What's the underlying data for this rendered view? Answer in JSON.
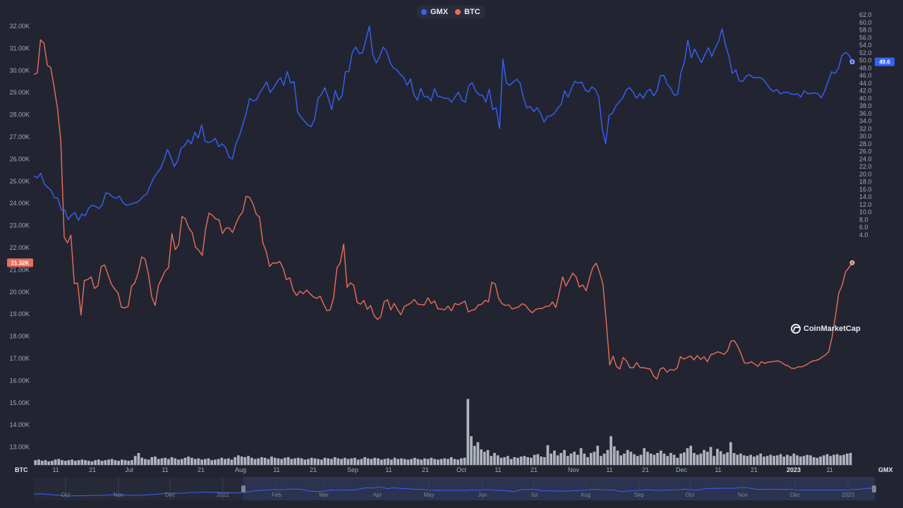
{
  "legend": {
    "items": [
      {
        "label": "GMX",
        "color": "#3861fb"
      },
      {
        "label": "BTC",
        "color": "#ea6e5a"
      }
    ]
  },
  "watermark": {
    "text": "CoinMarketCap",
    "icon": "coinmarketcap-logo-icon"
  },
  "colors": {
    "gmx": "#3861fb",
    "btc": "#ea6e5a",
    "volume": "#c8ccd6",
    "grid": "#2a2e3c",
    "background": "#222531"
  },
  "chart_data": {
    "type": "line",
    "left_axis": {
      "title": "BTC",
      "ticks": [
        "32.00K",
        "31.00K",
        "30.00K",
        "29.00K",
        "28.00K",
        "27.00K",
        "26.00K",
        "25.00K",
        "24.00K",
        "23.00K",
        "22.00K",
        "21.00K",
        "20.00K",
        "19.00K",
        "18.00K",
        "17.00K",
        "16.00K",
        "15.00K",
        "14.00K",
        "13.00K"
      ],
      "range": [
        12600,
        32000
      ]
    },
    "right_axis": {
      "title": "GMX",
      "ticks": [
        "62.0",
        "60.0",
        "58.0",
        "56.0",
        "54.0",
        "52.0",
        "50.0",
        "48.0",
        "46.0",
        "44.0",
        "42.0",
        "40.0",
        "38.0",
        "36.0",
        "34.0",
        "32.0",
        "30.0",
        "28.0",
        "26.0",
        "24.0",
        "22.0",
        "20.0",
        "18.0",
        "16.0",
        "14.0",
        "12.0",
        "10.0",
        "8.0",
        "6.0",
        "4.0"
      ],
      "range": [
        3,
        62
      ]
    },
    "x_axis": {
      "ticks": [
        {
          "label": "11",
          "bold": false
        },
        {
          "label": "21",
          "bold": false
        },
        {
          "label": "Jul",
          "bold": false
        },
        {
          "label": "11",
          "bold": false
        },
        {
          "label": "21",
          "bold": false
        },
        {
          "label": "Aug",
          "bold": false
        },
        {
          "label": "11",
          "bold": false
        },
        {
          "label": "21",
          "bold": false
        },
        {
          "label": "Sep",
          "bold": false
        },
        {
          "label": "11",
          "bold": false
        },
        {
          "label": "21",
          "bold": false
        },
        {
          "label": "Oct",
          "bold": false
        },
        {
          "label": "11",
          "bold": false
        },
        {
          "label": "21",
          "bold": false
        },
        {
          "label": "Nov",
          "bold": false
        },
        {
          "label": "11",
          "bold": false
        },
        {
          "label": "21",
          "bold": false
        },
        {
          "label": "Dec",
          "bold": false
        },
        {
          "label": "11",
          "bold": false
        },
        {
          "label": "21",
          "bold": false
        },
        {
          "label": "2023",
          "bold": true
        },
        {
          "label": "11",
          "bold": false
        }
      ]
    },
    "navigator": {
      "ticks": [
        "Oct",
        "Nov",
        "Dec",
        "2022",
        "Feb",
        "Mar",
        "Apr",
        "May",
        "Jun",
        "Jul",
        "Aug",
        "Sep",
        "Oct",
        "Nov",
        "Dec",
        "2023"
      ]
    },
    "last_values": {
      "BTC": "21.32K",
      "GMX": "49.6"
    },
    "series": [
      {
        "name": "GMX",
        "axis": "right",
        "values": [
          19.5,
          19.0,
          20.2,
          17.5,
          16.5,
          15.8,
          13.8,
          13.6,
          10.5,
          10.6,
          8.0,
          9.2,
          9.8,
          7.8,
          9.5,
          9.0,
          11.0,
          11.8,
          11.5,
          10.9,
          12.0,
          15.0,
          14.8,
          14.0,
          13.6,
          14.2,
          12.5,
          11.8,
          12.0,
          12.3,
          12.5,
          13.2,
          14.2,
          14.8,
          17.0,
          19.0,
          20.3,
          21.5,
          23.7,
          26.5,
          24.5,
          22.0,
          23.5,
          26.8,
          27.5,
          29.0,
          28.0,
          31.0,
          29.5,
          33.0,
          28.7,
          28.3,
          28.7,
          29.4,
          27.2,
          28.0,
          27.0,
          24.5,
          24.0,
          28.0,
          30.0,
          33.0,
          36.0,
          40.0,
          39.3,
          39.6,
          41.5,
          42.8,
          44.3,
          41.5,
          42.7,
          44.3,
          45.4,
          43.4,
          47.0,
          44.0,
          44.4,
          36.5,
          35.0,
          34.0,
          33.0,
          32.5,
          34.5,
          40.0,
          41.0,
          42.8,
          40.0,
          37.0,
          42.0,
          39.5,
          40.6,
          47.0,
          47.0,
          52.1,
          53.5,
          51.8,
          52.0,
          55.5,
          59.0,
          51.5,
          49.3,
          51.0,
          53.5,
          52.5,
          49.5,
          48.0,
          47.5,
          46.3,
          45.5,
          43.4,
          45.1,
          41.0,
          39.5,
          42.6,
          40.4,
          40.5,
          39.3,
          42.5,
          40.5,
          40.3,
          40.0,
          40.0,
          39.0,
          40.3,
          41.6,
          39.5,
          39.0,
          43.3,
          44.1,
          42.0,
          40.9,
          40.8,
          39.0,
          42.4,
          37.0,
          37.5,
          32.0,
          50.3,
          44.0,
          43.4,
          44.3,
          45.0,
          44.0,
          40.0,
          37.5,
          37.8,
          36.5,
          37.5,
          36.0,
          33.7,
          35.2,
          35.4,
          36.0,
          37.4,
          38.3,
          42.0,
          40.3,
          42.5,
          44.5,
          44.0,
          44.3,
          42.2,
          41.7,
          43.0,
          42.3,
          40.3,
          32.0,
          28.0,
          35.5,
          36.1,
          38.0,
          39.1,
          40.1,
          42.2,
          42.8,
          41.6,
          40.0,
          41.2,
          40.0,
          41.8,
          42.4,
          40.6,
          42.0,
          45.9,
          46.0,
          43.7,
          42.6,
          40.8,
          41.0,
          46.8,
          49.6,
          55.3,
          50.7,
          53.0,
          51.0,
          49.4,
          51.5,
          53.3,
          51.0,
          53.3,
          55.0,
          58.3,
          54.0,
          51.0,
          46.5,
          47.5,
          44.6,
          44.4,
          45.8,
          46.2,
          45.5,
          45.4,
          45.5,
          45.0,
          43.8,
          42.5,
          41.8,
          42.3,
          41.2,
          41.5,
          41.6,
          41.2,
          41.0,
          41.2,
          40.3,
          42.0,
          41.2,
          41.3,
          41.4,
          41.2,
          40.1,
          42.0,
          44.5,
          47.0,
          46.5,
          48.0,
          51.2,
          52.1,
          51.5,
          49.6
        ]
      },
      {
        "name": "BTC",
        "axis": "left",
        "values": [
          29820,
          29890,
          31380,
          31220,
          30230,
          30130,
          29260,
          28320,
          26800,
          22470,
          22220,
          22560,
          20380,
          20400,
          18960,
          20520,
          20560,
          20680,
          20160,
          20270,
          21150,
          21220,
          20790,
          20360,
          20130,
          19960,
          19310,
          19280,
          19350,
          20250,
          20420,
          20880,
          21580,
          21500,
          20820,
          19780,
          19390,
          20300,
          20620,
          20950,
          21100,
          22640,
          21910,
          22140,
          23410,
          23300,
          22890,
          22680,
          22030,
          21870,
          21650,
          22850,
          23560,
          23460,
          23300,
          23250,
          22640,
          22880,
          22890,
          22680,
          23080,
          23410,
          23610,
          24310,
          24280,
          24000,
          23520,
          23380,
          22220,
          21820,
          21150,
          21320,
          21290,
          21380,
          21080,
          20550,
          20640,
          20080,
          19840,
          20030,
          19920,
          20090,
          19920,
          19780,
          19710,
          19810,
          19470,
          19150,
          19190,
          19740,
          21080,
          21330,
          22160,
          20210,
          20410,
          20300,
          19530,
          19450,
          19620,
          19220,
          19380,
          18950,
          18760,
          18880,
          19550,
          19650,
          19190,
          19480,
          19200,
          18970,
          19340,
          19420,
          19510,
          19660,
          19450,
          19430,
          19420,
          19740,
          19480,
          19590,
          19240,
          19230,
          19190,
          19360,
          19150,
          19480,
          19420,
          19500,
          19590,
          19100,
          19170,
          19210,
          19410,
          19450,
          19620,
          19550,
          20440,
          20360,
          19720,
          19480,
          19390,
          19420,
          19230,
          19280,
          19330,
          19470,
          19400,
          19200,
          19060,
          19210,
          19250,
          19260,
          19350,
          19360,
          19550,
          19300,
          19960,
          20680,
          20270,
          20550,
          20850,
          20680,
          20220,
          20320,
          20050,
          20630,
          21110,
          21300,
          20880,
          20350,
          18600,
          16700,
          17100,
          16640,
          16520,
          17040,
          16880,
          16580,
          16580,
          16810,
          16590,
          16580,
          16550,
          16520,
          16210,
          16070,
          16530,
          16580,
          16380,
          16500,
          16470,
          16560,
          17080,
          16970,
          17040,
          17110,
          16930,
          17130,
          16950,
          17070,
          16850,
          17170,
          17210,
          17300,
          17250,
          17180,
          17350,
          17780,
          17800,
          17550,
          17200,
          16800,
          16780,
          16850,
          16750,
          16640,
          16850,
          16780,
          16830,
          16850,
          16870,
          16890,
          16820,
          16710,
          16660,
          16550,
          16550,
          16620,
          16620,
          16680,
          16770,
          16870,
          16900,
          16950,
          17050,
          17150,
          17300,
          17950,
          18880,
          19950,
          20300,
          20900,
          21100,
          21320
        ]
      },
      {
        "name": "Volume",
        "axis": "volume",
        "values": [
          0.8,
          0.9,
          0.7,
          0.8,
          0.6,
          0.7,
          0.9,
          1.0,
          0.8,
          0.7,
          0.8,
          0.9,
          0.7,
          0.8,
          0.9,
          0.8,
          0.7,
          0.6,
          0.8,
          0.9,
          0.7,
          0.8,
          0.9,
          1.0,
          0.8,
          0.7,
          0.9,
          0.8,
          0.7,
          0.8,
          1.5,
          2.0,
          1.2,
          1.0,
          0.9,
          1.3,
          1.4,
          1.0,
          1.1,
          1.2,
          1.0,
          1.3,
          1.1,
          0.9,
          1.0,
          1.2,
          1.4,
          1.2,
          1.0,
          1.1,
          0.9,
          1.0,
          1.1,
          0.8,
          0.9,
          1.0,
          1.2,
          1.0,
          1.1,
          0.9,
          1.3,
          1.6,
          1.4,
          1.3,
          1.5,
          1.2,
          1.0,
          1.1,
          1.3,
          1.2,
          1.0,
          1.4,
          1.2,
          1.1,
          1.0,
          1.2,
          1.3,
          1.0,
          1.1,
          1.2,
          1.1,
          0.9,
          1.0,
          1.2,
          1.1,
          1.0,
          0.9,
          1.2,
          1.1,
          1.0,
          1.3,
          1.1,
          1.0,
          1.2,
          1.0,
          1.1,
          1.2,
          0.9,
          1.0,
          1.3,
          1.1,
          1.0,
          1.2,
          1.1,
          0.9,
          1.0,
          1.1,
          0.9,
          1.2,
          1.0,
          1.1,
          1.0,
          0.9,
          1.0,
          1.2,
          1.0,
          0.9,
          1.1,
          1.0,
          1.2,
          1.0,
          0.9,
          1.0,
          1.1,
          1.0,
          1.3,
          1.0,
          0.9,
          1.1,
          1.2,
          11.0,
          4.8,
          3.2,
          3.8,
          2.6,
          2.2,
          2.5,
          1.5,
          2.0,
          1.6,
          1.2,
          1.3,
          1.5,
          1.0,
          1.3,
          1.2,
          1.4,
          1.5,
          1.3,
          1.2,
          1.7,
          1.8,
          1.4,
          1.3,
          3.3,
          1.9,
          2.4,
          1.6,
          2.0,
          2.5,
          1.5,
          1.9,
          2.2,
          1.7,
          2.8,
          1.9,
          1.3,
          2.0,
          2.2,
          3.2,
          1.5,
          1.9,
          2.5,
          4.8,
          3.1,
          2.4,
          1.6,
          1.9,
          2.5,
          2.2,
          1.8,
          1.5,
          1.7,
          2.8,
          2.2,
          1.9,
          1.7,
          2.0,
          2.4,
          1.9,
          1.5,
          2.0,
          1.7,
          1.2,
          1.9,
          2.1,
          2.8,
          3.2,
          2.0,
          1.7,
          1.9,
          2.5,
          2.2,
          3.0,
          1.5,
          2.7,
          2.3,
          1.8,
          2.1,
          3.8,
          2.0,
          1.7,
          1.9,
          1.6,
          1.5,
          1.7,
          1.4,
          1.6,
          1.9,
          1.4,
          1.5,
          1.7,
          1.5,
          1.6,
          1.8,
          1.4,
          1.7,
          1.5,
          1.9,
          1.6,
          1.4,
          1.5,
          1.7,
          1.6,
          1.3,
          1.2,
          1.4,
          1.6,
          1.8,
          1.5,
          1.7,
          1.8,
          1.6,
          1.7,
          1.9,
          2.0
        ]
      }
    ]
  }
}
